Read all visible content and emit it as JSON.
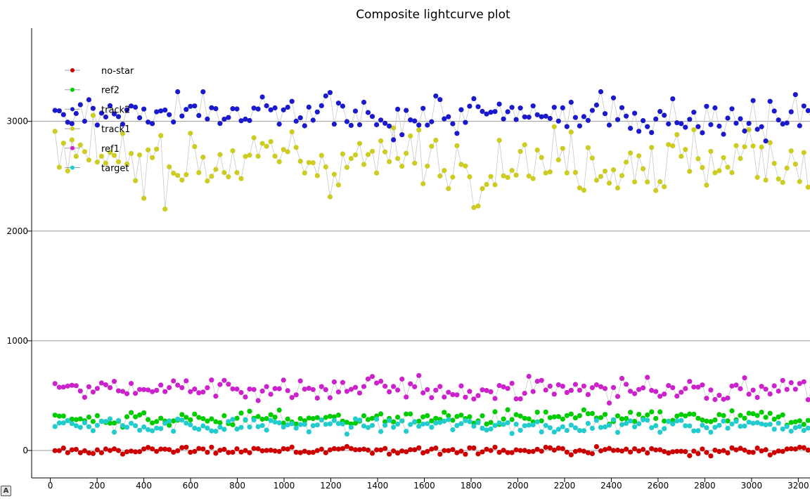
{
  "corner_badge": "A",
  "chart_data": {
    "type": "scatter",
    "title": "Composite lightcurve plot",
    "xlabel": "",
    "ylabel": "",
    "xlim": [
      -80,
      3250
    ],
    "ylim": [
      -250,
      3850
    ],
    "x_ticks": [
      0,
      200,
      400,
      600,
      800,
      1000,
      1200,
      1400,
      1600,
      1800,
      2000,
      2200,
      2400,
      2600,
      2800,
      3000,
      3200
    ],
    "y_ticks": [
      0,
      1000,
      2000,
      3000
    ],
    "grid": "horizontal",
    "legend_position": "top-left",
    "points_per_series_shown": 180,
    "x_range_of_points": [
      20,
      3260
    ],
    "series": [
      {
        "name": "no-star",
        "color": "#cc0000",
        "center": 0,
        "spread": 30,
        "min": -60,
        "max": 90
      },
      {
        "name": "ref2",
        "color": "#00cc00",
        "center": 290,
        "spread": 55,
        "min": 150,
        "max": 420
      },
      {
        "name": "track2",
        "color": "#1a1acc",
        "center": 3050,
        "spread": 150,
        "min": 2650,
        "max": 3640
      },
      {
        "name": "track1",
        "color": "#cccc22",
        "center": 2650,
        "spread": 230,
        "min": 1890,
        "max": 3150
      },
      {
        "name": "ref1",
        "color": "#cc22cc",
        "center": 560,
        "spread": 80,
        "min": 380,
        "max": 800
      },
      {
        "name": "target",
        "color": "#22cccc",
        "center": 230,
        "spread": 55,
        "min": 100,
        "max": 380
      }
    ]
  }
}
